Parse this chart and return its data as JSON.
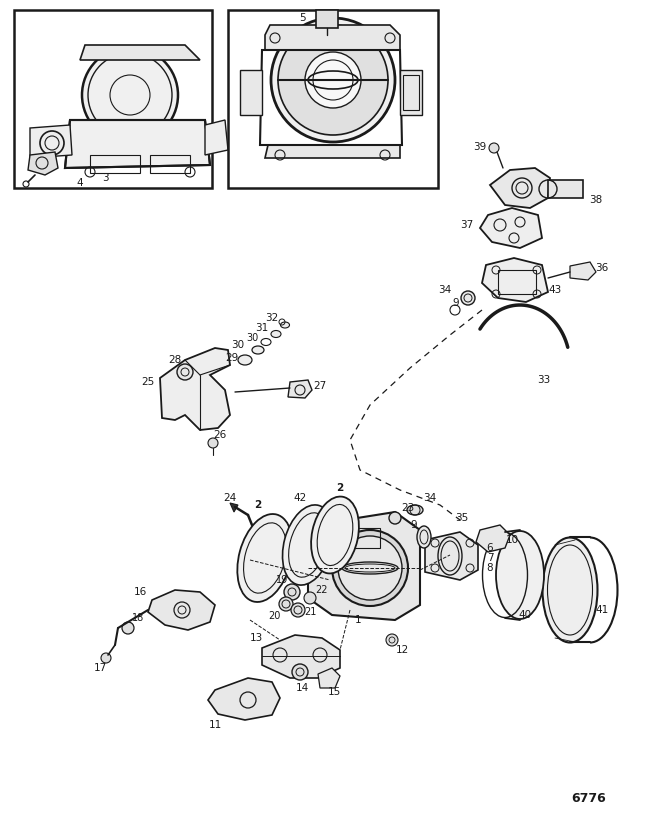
{
  "figure_number": "6776",
  "bg_color": "#ffffff",
  "lc": "#1a1a1a",
  "fig_width": 6.48,
  "fig_height": 8.16,
  "dpi": 100
}
